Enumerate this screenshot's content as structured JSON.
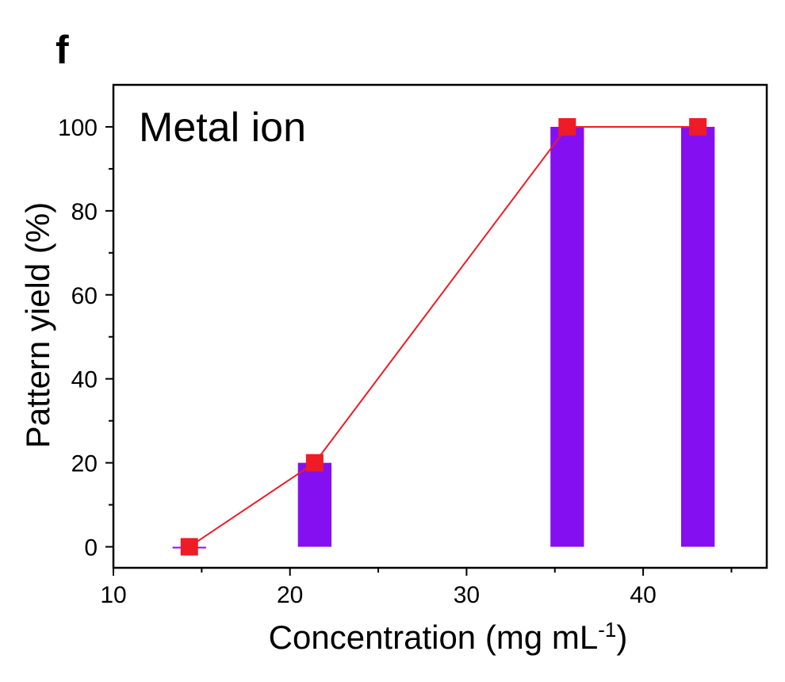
{
  "panel_label": "f",
  "chart_data": {
    "type": "bar",
    "annotation": "Metal ion",
    "xlabel": "Concentration (mg mL",
    "xlabel_sup": "-1",
    "xlabel_close": ")",
    "ylabel": "Pattern yield (%)",
    "xlim": [
      10,
      47
    ],
    "ylim": [
      -5,
      110
    ],
    "xticks": [
      10,
      20,
      30,
      40
    ],
    "yticks": [
      0,
      20,
      40,
      60,
      80,
      100
    ],
    "x": [
      14.3,
      21.4,
      35.7,
      43.1
    ],
    "values": [
      0,
      20,
      100,
      100
    ],
    "bar_width_data": 1.9,
    "bar_color": "#8410F2",
    "line_color": "#EE1C24",
    "marker_color": "#EE1C24",
    "grid": false
  }
}
